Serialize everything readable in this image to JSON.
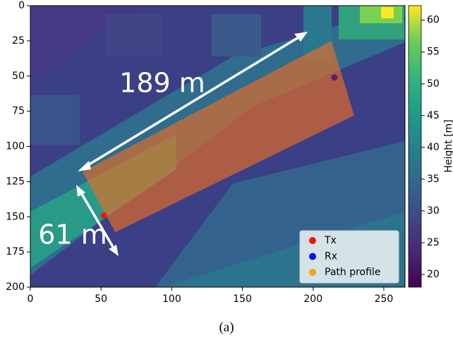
{
  "chart_data": {
    "type": "scatter",
    "xlim": [
      0,
      265
    ],
    "ylim": [
      200,
      0
    ],
    "xticks": [
      0,
      50,
      100,
      150,
      200,
      250
    ],
    "yticks": [
      0,
      25,
      50,
      75,
      100,
      125,
      150,
      175,
      200
    ],
    "colorbar": {
      "label": "Height [m]",
      "lim": [
        18,
        62.3
      ],
      "ticks": [
        20,
        25,
        30,
        35,
        40,
        45,
        50,
        55,
        60
      ]
    },
    "series": [
      {
        "name": "Tx",
        "color": "#e8180c",
        "x": [
          52
        ],
        "y": [
          149
        ]
      },
      {
        "name": "Rx",
        "color": "#1010e8",
        "x": [
          215
        ],
        "y": [
          51
        ]
      },
      {
        "name": "Path profile",
        "color": "#f5a31a",
        "x": [
          37,
          213,
          229,
          60
        ],
        "y": [
          118,
          25,
          78,
          161
        ]
      }
    ],
    "legend": "lower right",
    "annotations": [
      "189 m",
      "61 m"
    ],
    "caption": "(a)"
  }
}
